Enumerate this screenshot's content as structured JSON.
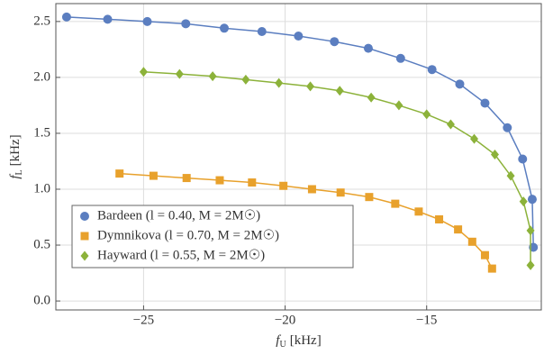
{
  "chart_data": {
    "type": "line",
    "x_label": {
      "symbol": "f",
      "subscript": "U",
      "unit": "[kHz]"
    },
    "y_label": {
      "symbol": "f",
      "subscript": "L",
      "unit": "[kHz]"
    },
    "xlim": [
      -28.1,
      -10.95
    ],
    "ylim": [
      -0.08,
      2.66
    ],
    "xticks": [
      {
        "value": -25,
        "label": "−25"
      },
      {
        "value": -20,
        "label": "−20"
      },
      {
        "value": -15,
        "label": "−15"
      }
    ],
    "yticks": [
      {
        "value": 0,
        "label": "0.0"
      },
      0.5,
      {
        "value": 1,
        "label": "1.0"
      },
      1.5,
      {
        "value": 2,
        "label": "2.0"
      },
      2.5
    ],
    "grid": true,
    "legend": "lower left",
    "series": [
      {
        "name": "Bardeen (l = 0.40,  M = 2M☉)",
        "color": "#5b7ec0",
        "marker": "circle",
        "x": [
          -27.72,
          -26.27,
          -24.87,
          -23.51,
          -22.15,
          -20.82,
          -19.53,
          -18.26,
          -17.06,
          -15.92,
          -14.81,
          -13.83,
          -12.94,
          -12.15,
          -11.61,
          -11.27,
          -11.23
        ],
        "values": [
          2.54,
          2.52,
          2.5,
          2.48,
          2.44,
          2.41,
          2.37,
          2.32,
          2.26,
          2.17,
          2.07,
          1.94,
          1.77,
          1.55,
          1.27,
          0.91,
          0.48
        ]
      },
      {
        "name": "Dymnikova (l = 0.70,  M = 2M☉)",
        "color": "#e8a12c",
        "marker": "square",
        "x": [
          -25.85,
          -24.65,
          -23.48,
          -22.31,
          -21.17,
          -20.06,
          -19.05,
          -18.04,
          -17.03,
          -16.11,
          -15.28,
          -14.56,
          -13.89,
          -13.39,
          -12.94,
          -12.69
        ],
        "values": [
          1.14,
          1.12,
          1.1,
          1.08,
          1.06,
          1.03,
          1.0,
          0.97,
          0.93,
          0.87,
          0.8,
          0.73,
          0.64,
          0.53,
          0.41,
          0.29
        ]
      },
      {
        "name": "Hayward (l = 0.55,  M = 2M☉)",
        "color": "#8cb23a",
        "marker": "diamond",
        "x": [
          -25.0,
          -23.73,
          -22.56,
          -21.39,
          -20.22,
          -19.11,
          -18.07,
          -16.96,
          -15.98,
          -15.0,
          -14.15,
          -13.32,
          -12.59,
          -12.03,
          -11.58,
          -11.33,
          -11.33
        ],
        "values": [
          2.05,
          2.03,
          2.01,
          1.98,
          1.95,
          1.92,
          1.88,
          1.82,
          1.75,
          1.67,
          1.58,
          1.45,
          1.31,
          1.12,
          0.89,
          0.63,
          0.32
        ]
      }
    ]
  }
}
